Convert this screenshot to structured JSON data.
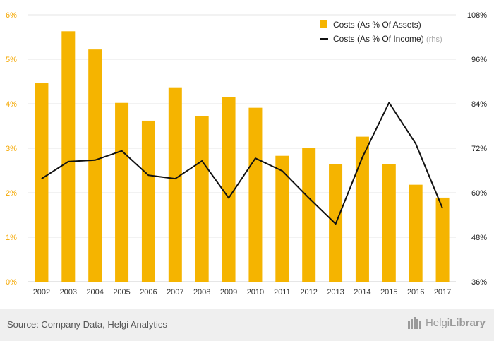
{
  "chart_data": {
    "type": "bar",
    "categories": [
      "2002",
      "2003",
      "2004",
      "2005",
      "2006",
      "2007",
      "2008",
      "2009",
      "2010",
      "2011",
      "2012",
      "2013",
      "2014",
      "2015",
      "2016",
      "2017"
    ],
    "series": [
      {
        "name": "Costs (As % Of Assets)",
        "kind": "bar",
        "axis": "left",
        "color": "#f5b400",
        "values": [
          4.46,
          5.63,
          5.22,
          4.02,
          3.62,
          4.37,
          3.72,
          4.15,
          3.91,
          2.83,
          3.0,
          2.65,
          3.26,
          2.64,
          2.18,
          1.89
        ]
      },
      {
        "name": "Costs (As % Of Income)",
        "legend_suffix": "(rhs)",
        "kind": "line",
        "axis": "right",
        "color": "#111111",
        "values": [
          63.8,
          68.4,
          68.8,
          71.3,
          64.7,
          63.8,
          68.6,
          58.6,
          69.3,
          65.9,
          58.6,
          51.6,
          69.5,
          84.3,
          73.2,
          55.8
        ]
      }
    ],
    "yaxis_left": {
      "min": 0,
      "max": 6,
      "ticks": [
        "0%",
        "1%",
        "2%",
        "3%",
        "4%",
        "5%",
        "6%"
      ],
      "color": "#f5a800"
    },
    "yaxis_right": {
      "min": 36,
      "max": 108,
      "ticks": [
        "36%",
        "48%",
        "60%",
        "72%",
        "84%",
        "96%",
        "108%"
      ]
    },
    "grid": true,
    "legend_position": "top-right"
  },
  "footer": {
    "source": "Source: Company Data, Helgi Analytics",
    "logo_regular": "Helgi",
    "logo_bold": "Library"
  }
}
